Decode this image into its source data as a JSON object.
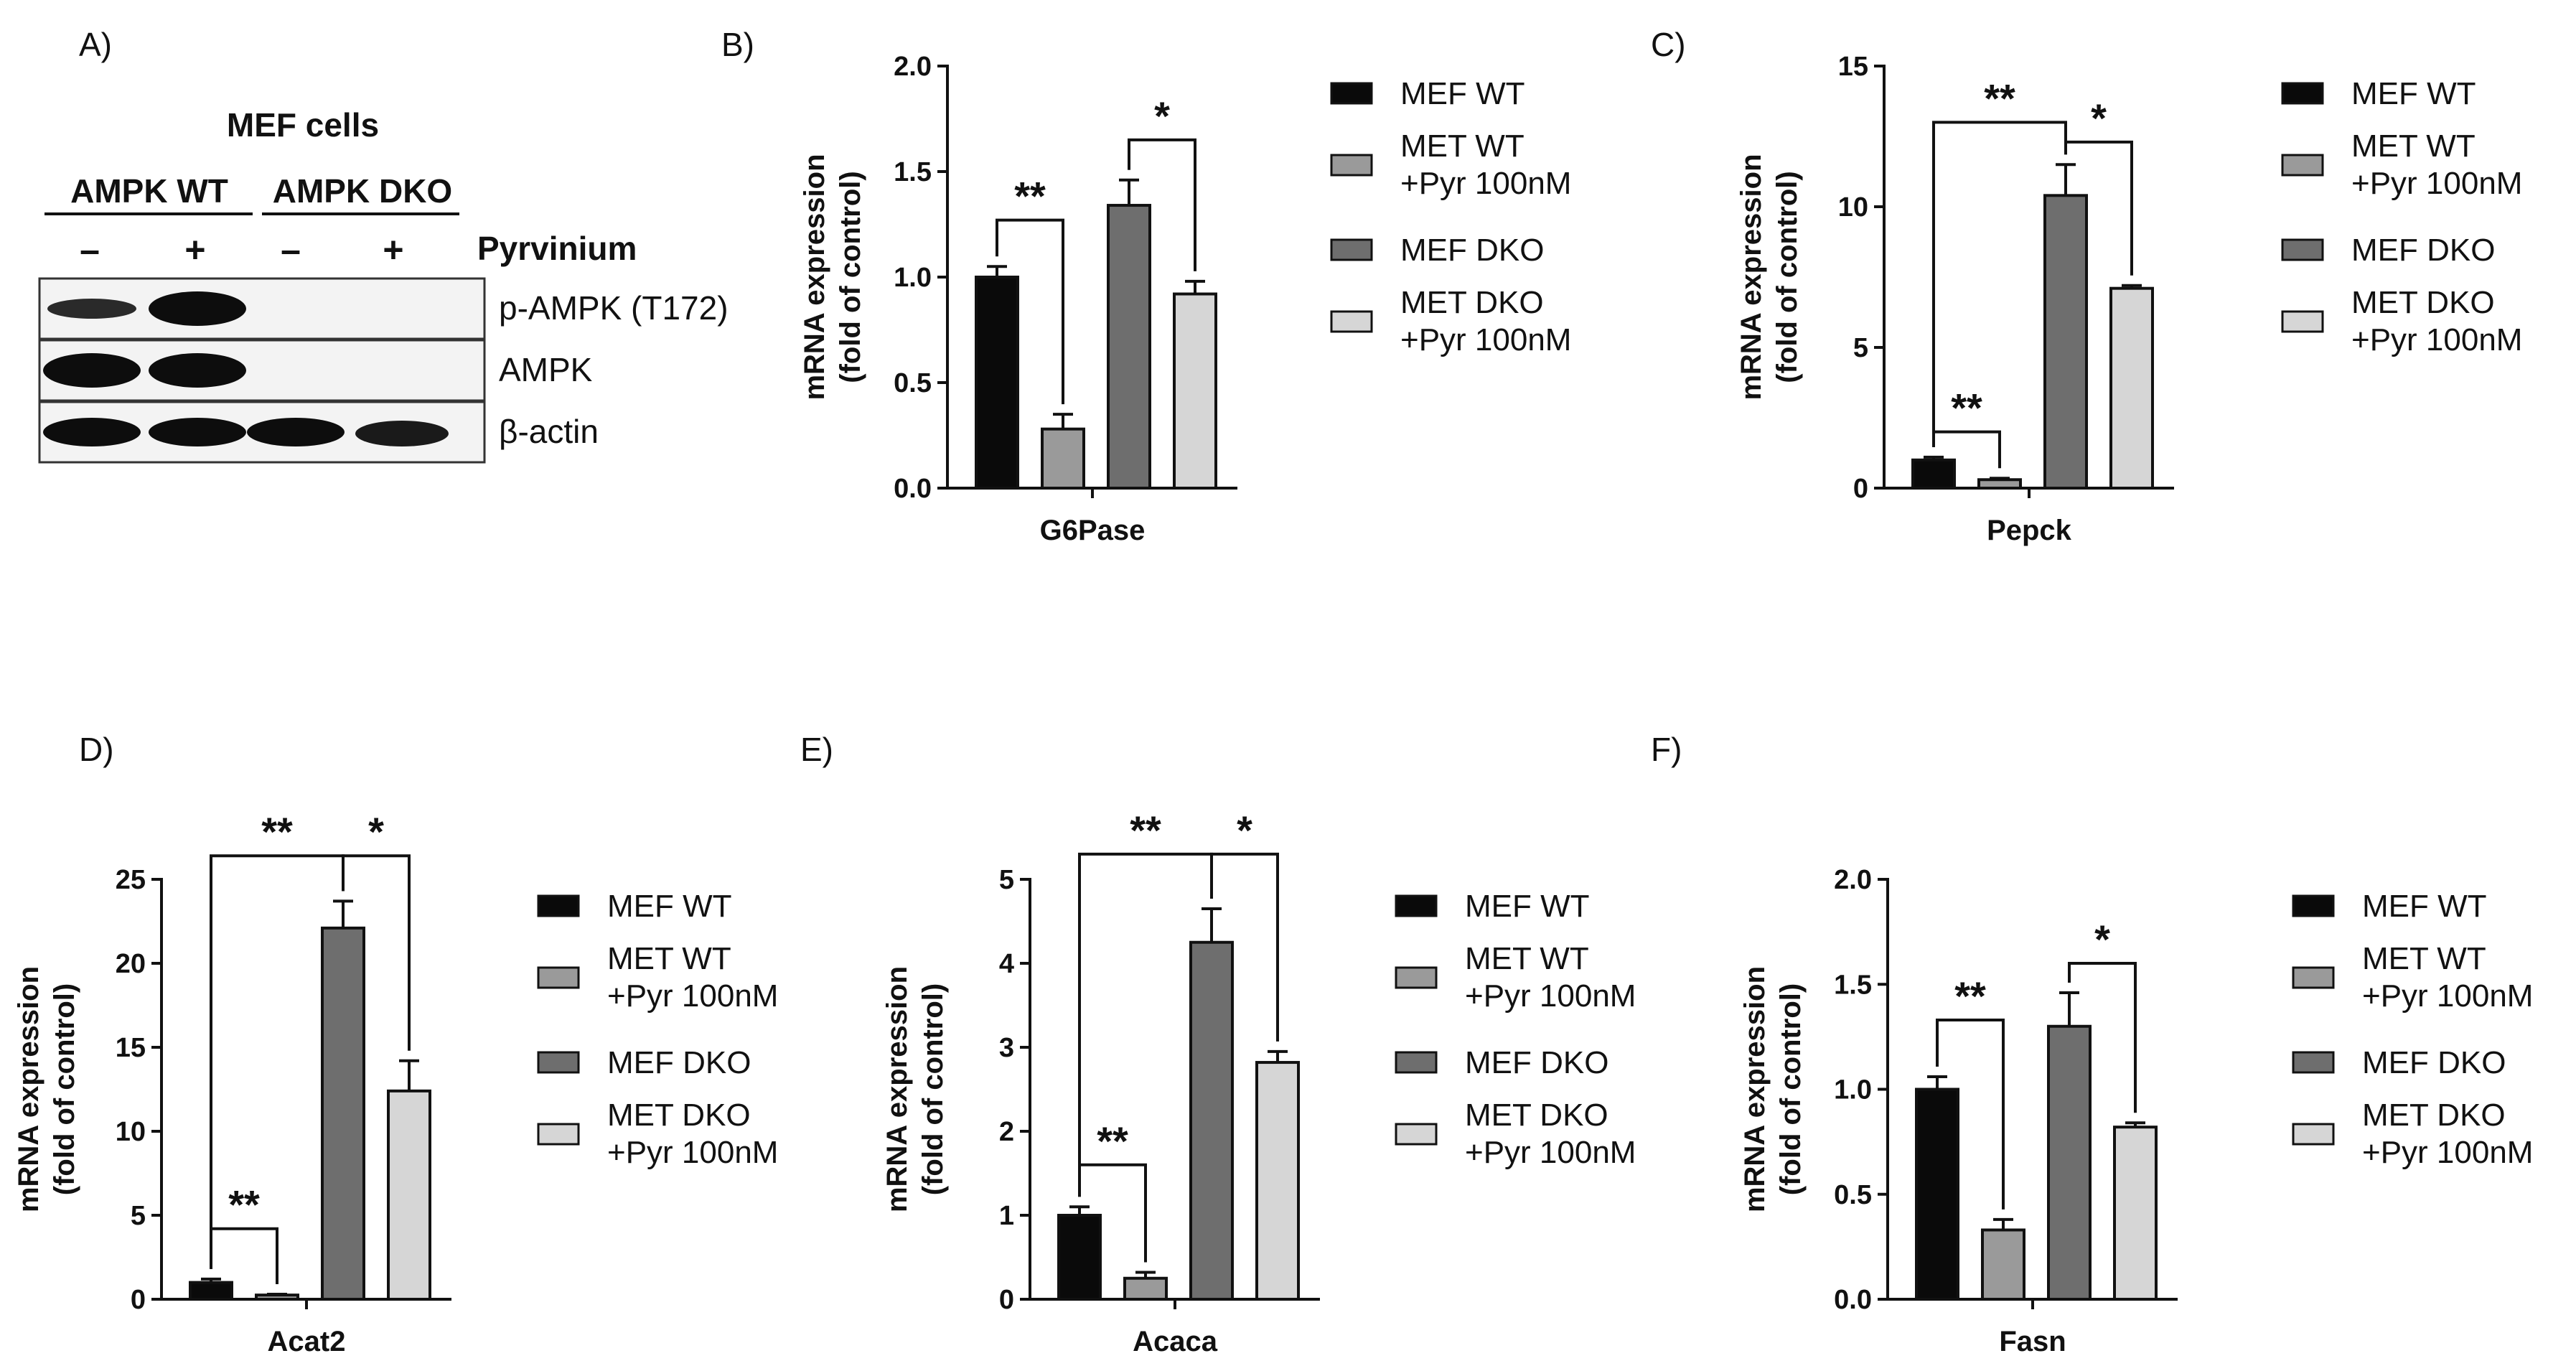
{
  "figure": {
    "panel_labels": [
      "A)",
      "B)",
      "C)",
      "D)",
      "E)",
      "F)"
    ]
  },
  "western_blot": {
    "title": "MEF cells",
    "groups": [
      "AMPK WT",
      "AMPK DKO"
    ],
    "treatment_label": "Pyrvinium",
    "lane_signs": [
      "–",
      "+",
      "–",
      "+"
    ],
    "bands": [
      "p-AMPK (T172)",
      "AMPK",
      "β-actin"
    ]
  },
  "legend": {
    "entries": [
      {
        "lines": [
          "MEF WT"
        ],
        "color": "#0a0a0a"
      },
      {
        "lines": [
          "MET WT",
          "+Pyr 100nM"
        ],
        "color": "#9a9a9a"
      },
      {
        "lines": [
          "MEF DKO"
        ],
        "color": "#6e6e6e"
      },
      {
        "lines": [
          "MET DKO",
          "+Pyr 100nM"
        ],
        "color": "#d6d6d6"
      }
    ]
  },
  "chart_data": [
    {
      "panel": "B)",
      "type": "bar",
      "title": "",
      "xlabel": "G6Pase",
      "ylabel": [
        "mRNA expression",
        "(fold of control)"
      ],
      "ylim": [
        0,
        2.0
      ],
      "yticks": [
        "0.0",
        "0.5",
        "1.0",
        "1.5",
        "2.0"
      ],
      "series": [
        {
          "name": "MEF WT",
          "value": 1.0,
          "error": 0.05
        },
        {
          "name": "MET WT +Pyr 100nM",
          "value": 0.28,
          "error": 0.07
        },
        {
          "name": "MEF DKO",
          "value": 1.34,
          "error": 0.12
        },
        {
          "name": "MET DKO +Pyr 100nM",
          "value": 0.92,
          "error": 0.06
        }
      ],
      "significance": [
        {
          "from": 0,
          "to": 1,
          "label": "**",
          "level": 1.27
        },
        {
          "from": 2,
          "to": 3,
          "label": "*",
          "level": 1.65
        }
      ]
    },
    {
      "panel": "C)",
      "type": "bar",
      "title": "",
      "xlabel": "Pepck",
      "ylabel": [
        "mRNA expression",
        "(fold of control)"
      ],
      "ylim": [
        0,
        15
      ],
      "yticks": [
        "0",
        "5",
        "10",
        "15"
      ],
      "series": [
        {
          "name": "MEF WT",
          "value": 1.0,
          "error": 0.1
        },
        {
          "name": "MET WT +Pyr 100nM",
          "value": 0.3,
          "error": 0.05
        },
        {
          "name": "MEF DKO",
          "value": 10.4,
          "error": 1.1
        },
        {
          "name": "MET DKO +Pyr 100nM",
          "value": 7.1,
          "error": 0.1
        }
      ],
      "significance": [
        {
          "from": 0,
          "to": 1,
          "label": "**",
          "level": 2.0
        },
        {
          "from": 0,
          "to": 2,
          "label": "**",
          "level": 13.0
        },
        {
          "from": 2,
          "to": 3,
          "label": "*",
          "level": 12.3
        }
      ]
    },
    {
      "panel": "D)",
      "type": "bar",
      "title": "",
      "xlabel": "Acat2",
      "ylabel": [
        "mRNA expression",
        "(fold of control)"
      ],
      "ylim": [
        0,
        25
      ],
      "yticks": [
        "0",
        "5",
        "10",
        "15",
        "20",
        "25"
      ],
      "series": [
        {
          "name": "MEF WT",
          "value": 1.0,
          "error": 0.2
        },
        {
          "name": "MET WT +Pyr 100nM",
          "value": 0.25,
          "error": 0.05
        },
        {
          "name": "MEF DKO",
          "value": 22.1,
          "error": 1.6
        },
        {
          "name": "MET DKO +Pyr 100nM",
          "value": 12.4,
          "error": 1.8
        }
      ],
      "significance": [
        {
          "from": 0,
          "to": 1,
          "label": "**",
          "level": 4.2
        },
        {
          "from": 0,
          "to": 2,
          "label": "**",
          "level": 26.4
        },
        {
          "from": 2,
          "to": 3,
          "label": "*",
          "level": 26.4
        }
      ]
    },
    {
      "panel": "E)",
      "type": "bar",
      "title": "",
      "xlabel": "Acaca",
      "ylabel": [
        "mRNA expression",
        "(fold of control)"
      ],
      "ylim": [
        0,
        5
      ],
      "yticks": [
        "0",
        "1",
        "2",
        "3",
        "4",
        "5"
      ],
      "series": [
        {
          "name": "MEF WT",
          "value": 1.0,
          "error": 0.1
        },
        {
          "name": "MET WT +Pyr 100nM",
          "value": 0.25,
          "error": 0.07
        },
        {
          "name": "MEF DKO",
          "value": 4.25,
          "error": 0.4
        },
        {
          "name": "MET DKO +Pyr 100nM",
          "value": 2.82,
          "error": 0.13
        }
      ],
      "significance": [
        {
          "from": 0,
          "to": 1,
          "label": "**",
          "level": 1.6
        },
        {
          "from": 0,
          "to": 2,
          "label": "**",
          "level": 5.3
        },
        {
          "from": 2,
          "to": 3,
          "label": "*",
          "level": 5.3
        }
      ]
    },
    {
      "panel": "F)",
      "type": "bar",
      "title": "",
      "xlabel": "Fasn",
      "ylabel": [
        "mRNA expression",
        "(fold of control)"
      ],
      "ylim": [
        0,
        2.0
      ],
      "yticks": [
        "0.0",
        "0.5",
        "1.0",
        "1.5",
        "2.0"
      ],
      "series": [
        {
          "name": "MEF WT",
          "value": 1.0,
          "error": 0.06
        },
        {
          "name": "MET WT +Pyr 100nM",
          "value": 0.33,
          "error": 0.05
        },
        {
          "name": "MEF DKO",
          "value": 1.3,
          "error": 0.16
        },
        {
          "name": "MET DKO +Pyr 100nM",
          "value": 0.82,
          "error": 0.02
        }
      ],
      "significance": [
        {
          "from": 0,
          "to": 1,
          "label": "**",
          "level": 1.33
        },
        {
          "from": 2,
          "to": 3,
          "label": "*",
          "level": 1.6
        }
      ]
    }
  ]
}
